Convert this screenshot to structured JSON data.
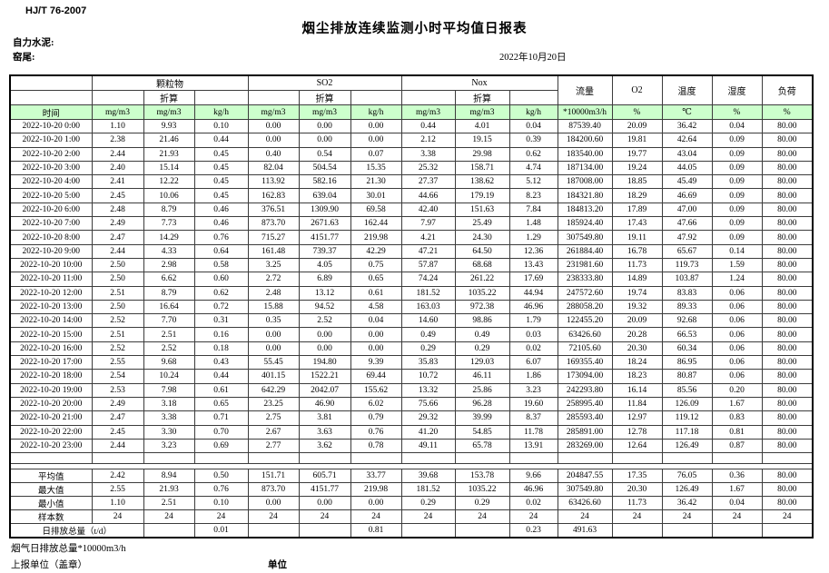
{
  "page": {
    "standard": "HJ/T 76-2007",
    "title": "烟尘排放连续监测小时平均值日报表",
    "company": "自力水泥:",
    "location": "窑尾:",
    "date": "2022年10月20日"
  },
  "colors": {
    "unit_row_bg": "#ccffcc"
  },
  "table": {
    "time_header": "时间",
    "groups": [
      "颗粒物",
      "SO2",
      "Nox"
    ],
    "zhesuan": "折算",
    "single_headers": [
      "流量",
      "O2",
      "温度",
      "湿度",
      "负荷"
    ],
    "units": [
      "mg/m3",
      "mg/m3",
      "kg/h",
      "mg/m3",
      "mg/m3",
      "kg/h",
      "mg/m3",
      "mg/m3",
      "kg/h",
      "*10000m3/h",
      "%",
      "℃",
      "%",
      "%"
    ],
    "rows": [
      [
        "2022-10-20 0:00",
        "1.10",
        "9.93",
        "0.10",
        "0.00",
        "0.00",
        "0.00",
        "0.44",
        "4.01",
        "0.04",
        "87539.40",
        "20.09",
        "36.42",
        "0.04",
        "80.00"
      ],
      [
        "2022-10-20 1:00",
        "2.38",
        "21.46",
        "0.44",
        "0.00",
        "0.00",
        "0.00",
        "2.12",
        "19.15",
        "0.39",
        "184200.60",
        "19.81",
        "42.64",
        "0.09",
        "80.00"
      ],
      [
        "2022-10-20 2:00",
        "2.44",
        "21.93",
        "0.45",
        "0.40",
        "0.54",
        "0.07",
        "3.38",
        "29.98",
        "0.62",
        "183540.00",
        "19.77",
        "43.04",
        "0.09",
        "80.00"
      ],
      [
        "2022-10-20 3:00",
        "2.40",
        "15.14",
        "0.45",
        "82.04",
        "504.54",
        "15.35",
        "25.32",
        "158.71",
        "4.74",
        "187134.00",
        "19.24",
        "44.05",
        "0.09",
        "80.00"
      ],
      [
        "2022-10-20 4:00",
        "2.41",
        "12.22",
        "0.45",
        "113.92",
        "582.16",
        "21.30",
        "27.37",
        "138.62",
        "5.12",
        "187008.00",
        "18.85",
        "45.49",
        "0.09",
        "80.00"
      ],
      [
        "2022-10-20 5:00",
        "2.45",
        "10.06",
        "0.45",
        "162.83",
        "639.04",
        "30.01",
        "44.66",
        "179.19",
        "8.23",
        "184321.80",
        "18.29",
        "46.69",
        "0.09",
        "80.00"
      ],
      [
        "2022-10-20 6:00",
        "2.48",
        "8.79",
        "0.46",
        "376.51",
        "1309.90",
        "69.58",
        "42.40",
        "151.63",
        "7.84",
        "184813.20",
        "17.89",
        "47.00",
        "0.09",
        "80.00"
      ],
      [
        "2022-10-20 7:00",
        "2.49",
        "7.73",
        "0.46",
        "873.70",
        "2671.63",
        "162.44",
        "7.97",
        "25.49",
        "1.48",
        "185924.40",
        "17.43",
        "47.66",
        "0.09",
        "80.00"
      ],
      [
        "2022-10-20 8:00",
        "2.47",
        "14.29",
        "0.76",
        "715.27",
        "4151.77",
        "219.98",
        "4.21",
        "24.30",
        "1.29",
        "307549.80",
        "19.11",
        "47.92",
        "0.09",
        "80.00"
      ],
      [
        "2022-10-20 9:00",
        "2.44",
        "4.33",
        "0.64",
        "161.48",
        "739.37",
        "42.29",
        "47.21",
        "64.50",
        "12.36",
        "261884.40",
        "16.78",
        "65.67",
        "0.14",
        "80.00"
      ],
      [
        "2022-10-20 10:00",
        "2.50",
        "2.98",
        "0.58",
        "3.25",
        "4.05",
        "0.75",
        "57.87",
        "68.68",
        "13.43",
        "231981.60",
        "11.73",
        "119.73",
        "1.59",
        "80.00"
      ],
      [
        "2022-10-20 11:00",
        "2.50",
        "6.62",
        "0.60",
        "2.72",
        "6.89",
        "0.65",
        "74.24",
        "261.22",
        "17.69",
        "238333.80",
        "14.89",
        "103.87",
        "1.24",
        "80.00"
      ],
      [
        "2022-10-20 12:00",
        "2.51",
        "8.79",
        "0.62",
        "2.48",
        "13.12",
        "0.61",
        "181.52",
        "1035.22",
        "44.94",
        "247572.60",
        "19.74",
        "83.83",
        "0.06",
        "80.00"
      ],
      [
        "2022-10-20 13:00",
        "2.50",
        "16.64",
        "0.72",
        "15.88",
        "94.52",
        "4.58",
        "163.03",
        "972.38",
        "46.96",
        "288058.20",
        "19.32",
        "89.33",
        "0.06",
        "80.00"
      ],
      [
        "2022-10-20 14:00",
        "2.52",
        "7.70",
        "0.31",
        "0.35",
        "2.52",
        "0.04",
        "14.60",
        "98.86",
        "1.79",
        "122455.20",
        "20.09",
        "92.68",
        "0.06",
        "80.00"
      ],
      [
        "2022-10-20 15:00",
        "2.51",
        "2.51",
        "0.16",
        "0.00",
        "0.00",
        "0.00",
        "0.49",
        "0.49",
        "0.03",
        "63426.60",
        "20.28",
        "66.53",
        "0.06",
        "80.00"
      ],
      [
        "2022-10-20 16:00",
        "2.52",
        "2.52",
        "0.18",
        "0.00",
        "0.00",
        "0.00",
        "0.29",
        "0.29",
        "0.02",
        "72105.60",
        "20.30",
        "60.34",
        "0.06",
        "80.00"
      ],
      [
        "2022-10-20 17:00",
        "2.55",
        "9.68",
        "0.43",
        "55.45",
        "194.80",
        "9.39",
        "35.83",
        "129.03",
        "6.07",
        "169355.40",
        "18.24",
        "86.95",
        "0.06",
        "80.00"
      ],
      [
        "2022-10-20 18:00",
        "2.54",
        "10.24",
        "0.44",
        "401.15",
        "1522.21",
        "69.44",
        "10.72",
        "46.11",
        "1.86",
        "173094.00",
        "18.23",
        "80.87",
        "0.06",
        "80.00"
      ],
      [
        "2022-10-20 19:00",
        "2.53",
        "7.98",
        "0.61",
        "642.29",
        "2042.07",
        "155.62",
        "13.32",
        "25.86",
        "3.23",
        "242293.80",
        "16.14",
        "85.56",
        "0.20",
        "80.00"
      ],
      [
        "2022-10-20 20:00",
        "2.49",
        "3.18",
        "0.65",
        "23.25",
        "46.90",
        "6.02",
        "75.66",
        "96.28",
        "19.60",
        "258995.40",
        "11.84",
        "126.09",
        "1.67",
        "80.00"
      ],
      [
        "2022-10-20 21:00",
        "2.47",
        "3.38",
        "0.71",
        "2.75",
        "3.81",
        "0.79",
        "29.32",
        "39.99",
        "8.37",
        "285593.40",
        "12.97",
        "119.12",
        "0.83",
        "80.00"
      ],
      [
        "2022-10-20 22:00",
        "2.45",
        "3.30",
        "0.70",
        "2.67",
        "3.63",
        "0.76",
        "41.20",
        "54.85",
        "11.78",
        "285891.00",
        "12.78",
        "117.18",
        "0.81",
        "80.00"
      ],
      [
        "2022-10-20 23:00",
        "2.44",
        "3.23",
        "0.69",
        "2.77",
        "3.62",
        "0.78",
        "49.11",
        "65.78",
        "13.91",
        "283269.00",
        "12.64",
        "126.49",
        "0.87",
        "80.00"
      ]
    ],
    "summary": [
      {
        "label": "平均值",
        "values": [
          "2.42",
          "8.94",
          "0.50",
          "151.71",
          "605.71",
          "33.77",
          "39.68",
          "153.78",
          "9.66",
          "204847.55",
          "17.35",
          "76.05",
          "0.36",
          "80.00"
        ]
      },
      {
        "label": "最大值",
        "values": [
          "2.55",
          "21.93",
          "0.76",
          "873.70",
          "4151.77",
          "219.98",
          "181.52",
          "1035.22",
          "46.96",
          "307549.80",
          "20.30",
          "126.49",
          "1.67",
          "80.00"
        ]
      },
      {
        "label": "最小值",
        "values": [
          "1.10",
          "2.51",
          "0.10",
          "0.00",
          "0.00",
          "0.00",
          "0.29",
          "0.29",
          "0.02",
          "63426.60",
          "11.73",
          "36.42",
          "0.04",
          "80.00"
        ]
      },
      {
        "label": "样本数",
        "values": [
          "24",
          "24",
          "24",
          "24",
          "24",
          "24",
          "24",
          "24",
          "24",
          "24",
          "24",
          "24",
          "24",
          "24"
        ]
      },
      {
        "label": "日排放总量（t/d）",
        "colspan": 2,
        "align": "left",
        "values": [
          "",
          "0.01",
          "",
          "",
          "0.81",
          "",
          "",
          "0.23",
          "491.63",
          "",
          "",
          "",
          ""
        ]
      }
    ]
  },
  "footer": {
    "flue_total": "烟气日排放总量*10000m3/h",
    "report_unit": "上报单位（盖章）",
    "unit": "单位"
  }
}
